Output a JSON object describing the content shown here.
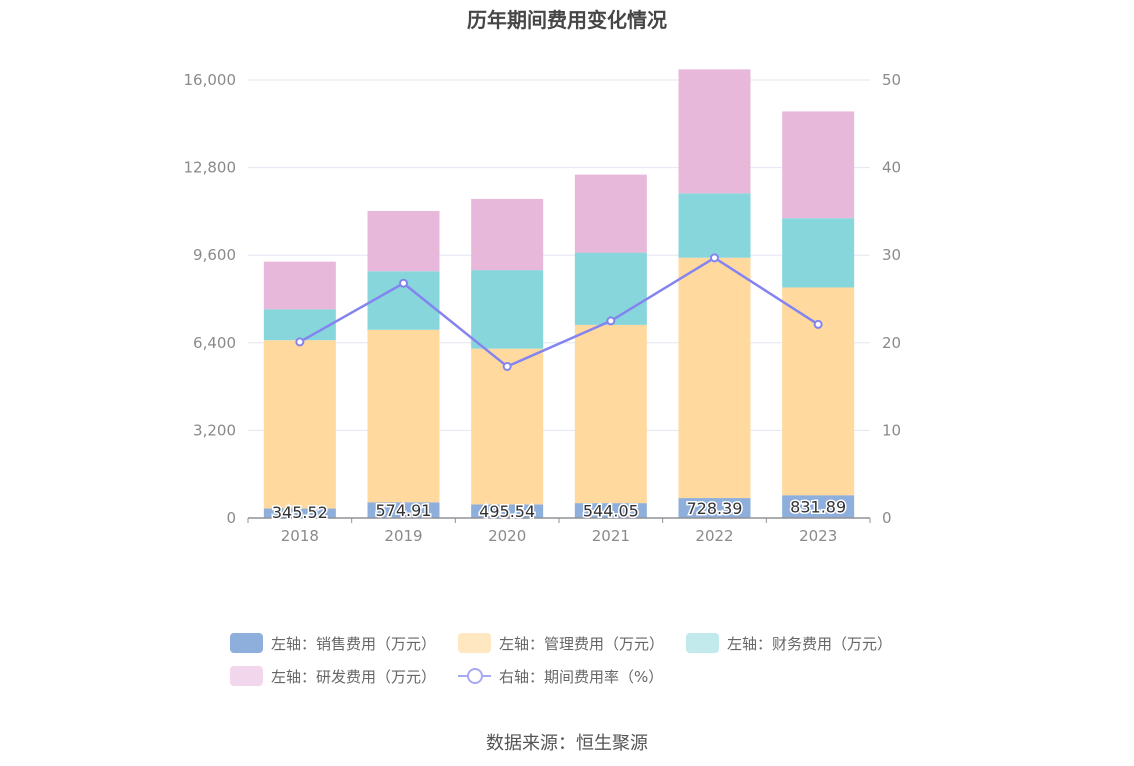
{
  "chart_data": {
    "type": "bar",
    "title": "历年期间费用变化情况",
    "categories": [
      "2018",
      "2019",
      "2020",
      "2021",
      "2022",
      "2023"
    ],
    "y_left": {
      "ticks": [
        "0",
        "3,200",
        "6,400",
        "9,600",
        "12,800",
        "16,000"
      ],
      "ylim": [
        0,
        16000
      ]
    },
    "y_right": {
      "ticks": [
        "0",
        "10",
        "20",
        "30",
        "40",
        "50"
      ],
      "ylim": [
        0,
        50
      ]
    },
    "series": [
      {
        "name": "左轴：销售费用（万元）",
        "kind": "bar",
        "axis": "left",
        "color": "#8eaedb",
        "values": [
          345.52,
          574.91,
          495.54,
          544.05,
          728.39,
          831.89
        ]
      },
      {
        "name": "左轴：管理费用（万元）",
        "kind": "bar",
        "axis": "left",
        "color": "#ffd99e",
        "values": [
          6150,
          6300,
          5690,
          6510,
          8780,
          7590
        ]
      },
      {
        "name": "左轴：财务费用（万元）",
        "kind": "bar",
        "axis": "left",
        "color": "#87d6db",
        "values": [
          1130,
          2140,
          2870,
          2640,
          2350,
          2530
        ]
      },
      {
        "name": "左轴：研发费用（万元）",
        "kind": "bar",
        "axis": "left",
        "color": "#e8b8da",
        "values": [
          1740,
          2200,
          2600,
          2850,
          4530,
          3900
        ]
      },
      {
        "name": "右轴：期间费用率（%）",
        "kind": "line",
        "axis": "right",
        "color": "#8484f0",
        "values": [
          20.1,
          26.8,
          17.3,
          22.5,
          29.7,
          22.1
        ]
      }
    ],
    "data_labels": [
      "345.52",
      "574.91",
      "495.54",
      "544.05",
      "728.39",
      "831.89"
    ],
    "grid": true,
    "legend_position": "bottom"
  },
  "legend": {
    "row1": [
      "左轴：销售费用（万元）",
      "左轴：管理费用（万元）",
      "左轴：财务费用（万元）"
    ],
    "row2": [
      "左轴：研发费用（万元）",
      "右轴：期间费用率（%）"
    ]
  },
  "source": "数据来源：恒生聚源"
}
